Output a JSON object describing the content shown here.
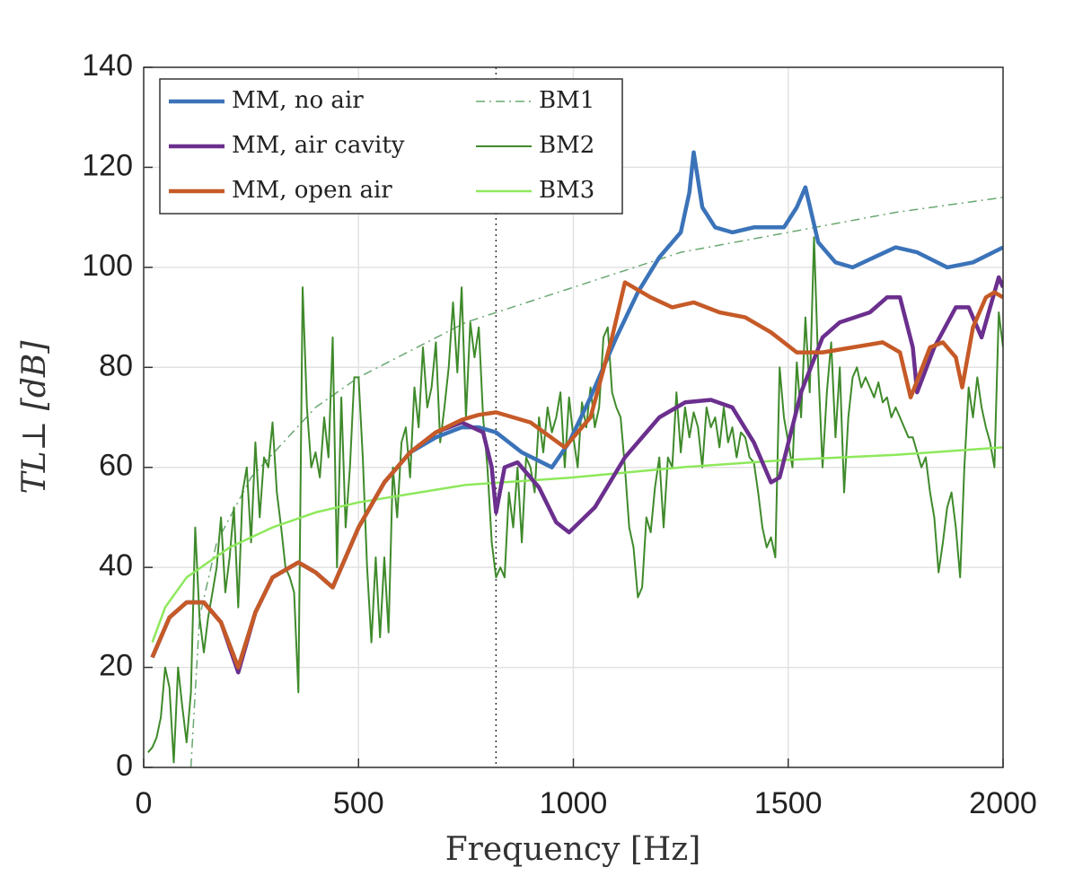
{
  "chart_data": {
    "type": "line",
    "xlabel": "Frequency [Hz]",
    "ylabel": "TL⊥ [dB]",
    "xlim": [
      0,
      2000
    ],
    "xticks": [
      0,
      500,
      1000,
      1500,
      2000
    ],
    "ylim": [
      0,
      140
    ],
    "yticks": [
      0,
      20,
      40,
      60,
      80,
      100,
      120,
      140
    ],
    "grid": true,
    "legend": "upper left",
    "vline": 820,
    "series": [
      {
        "name": "MM, no air",
        "color": "#3b73b9",
        "width": 4.5,
        "dash": "solid",
        "x": [
          20,
          60,
          100,
          140,
          180,
          220,
          260,
          300,
          360,
          400,
          440,
          500,
          560,
          620,
          680,
          740,
          780,
          820,
          880,
          950,
          990,
          1040,
          1100,
          1150,
          1200,
          1250,
          1270,
          1280,
          1300,
          1330,
          1370,
          1420,
          1490,
          1520,
          1540,
          1570,
          1610,
          1650,
          1700,
          1750,
          1800,
          1870,
          1930,
          2000
        ],
        "values": [
          22,
          30,
          33,
          33,
          29,
          20,
          31,
          38,
          41,
          39,
          36,
          48,
          57,
          63,
          66,
          68,
          68,
          67,
          63,
          60,
          65,
          74,
          86,
          95,
          102,
          107,
          115,
          123,
          112,
          108,
          107,
          108,
          108,
          112,
          116,
          105,
          101,
          100,
          102,
          104,
          103,
          100,
          101,
          104
        ]
      },
      {
        "name": "MM, air cavity",
        "color": "#6b2f8e",
        "width": 4.5,
        "dash": "solid",
        "x": [
          20,
          60,
          100,
          140,
          180,
          220,
          260,
          300,
          360,
          400,
          440,
          500,
          560,
          620,
          680,
          740,
          790,
          810,
          820,
          840,
          870,
          920,
          960,
          990,
          1050,
          1120,
          1200,
          1260,
          1320,
          1370,
          1420,
          1460,
          1480,
          1530,
          1580,
          1620,
          1690,
          1730,
          1760,
          1790,
          1800,
          1840,
          1890,
          1920,
          1950,
          1970,
          1990,
          2000
        ],
        "values": [
          22,
          30,
          33,
          33,
          29,
          19,
          31,
          38,
          41,
          39,
          36,
          48,
          57,
          63,
          67,
          69,
          67,
          60,
          51,
          60,
          61,
          56,
          49,
          47,
          52,
          62,
          70,
          73,
          73.5,
          72,
          65,
          57,
          58,
          75,
          86,
          89,
          91,
          94,
          94,
          84,
          75,
          84,
          92,
          92,
          86,
          92,
          98,
          96
        ]
      },
      {
        "name": "MM, open air",
        "color": "#c65a27",
        "width": 4.5,
        "dash": "solid",
        "x": [
          20,
          60,
          100,
          140,
          180,
          220,
          260,
          300,
          360,
          400,
          440,
          500,
          560,
          620,
          680,
          740,
          780,
          820,
          900,
          980,
          1040,
          1090,
          1120,
          1180,
          1230,
          1280,
          1340,
          1400,
          1460,
          1520,
          1580,
          1650,
          1720,
          1760,
          1785,
          1830,
          1860,
          1890,
          1905,
          1930,
          1960,
          1980,
          2000
        ],
        "values": [
          22,
          30,
          33,
          33,
          29,
          20,
          31,
          38,
          41,
          39,
          36,
          48,
          57,
          63,
          67,
          69.5,
          70.5,
          71,
          69,
          64,
          70,
          86,
          97,
          94,
          92,
          93,
          91,
          90,
          87,
          83,
          83,
          84,
          85,
          83,
          74,
          84,
          85,
          82,
          76,
          88,
          94,
          95,
          94
        ]
      },
      {
        "name": "BM1",
        "color": "#6aa872",
        "width": 1.5,
        "dash": "dashdot",
        "x": [
          110,
          130,
          170,
          250,
          400,
          500,
          750,
          1000,
          1250,
          1500,
          1750,
          2000
        ],
        "values": [
          0,
          30,
          45,
          58,
          72,
          78,
          89,
          96,
          103,
          107,
          111,
          114
        ]
      },
      {
        "name": "BM2",
        "color": "#3f8a2b",
        "width": 2,
        "dash": "solid",
        "x": [
          10,
          20,
          30,
          40,
          50,
          60,
          70,
          80,
          90,
          100,
          110,
          120,
          130,
          140,
          150,
          160,
          170,
          180,
          190,
          200,
          210,
          220,
          230,
          240,
          250,
          260,
          270,
          280,
          290,
          300,
          310,
          320,
          330,
          340,
          350,
          360,
          370,
          380,
          390,
          400,
          410,
          420,
          430,
          440,
          450,
          460,
          470,
          480,
          490,
          500,
          510,
          520,
          530,
          540,
          550,
          560,
          570,
          580,
          590,
          600,
          610,
          620,
          630,
          640,
          650,
          660,
          670,
          680,
          690,
          700,
          710,
          720,
          730,
          740,
          750,
          760,
          770,
          780,
          790,
          800,
          810,
          820,
          830,
          840,
          850,
          860,
          870,
          880,
          890,
          900,
          910,
          920,
          930,
          940,
          950,
          960,
          970,
          980,
          990,
          1000,
          1010,
          1020,
          1030,
          1040,
          1050,
          1060,
          1070,
          1080,
          1090,
          1100,
          1110,
          1120,
          1130,
          1140,
          1150,
          1160,
          1170,
          1180,
          1190,
          1200,
          1210,
          1220,
          1230,
          1240,
          1250,
          1260,
          1270,
          1280,
          1290,
          1300,
          1310,
          1320,
          1330,
          1340,
          1350,
          1360,
          1370,
          1380,
          1390,
          1400,
          1410,
          1420,
          1430,
          1440,
          1450,
          1460,
          1470,
          1480,
          1490,
          1500,
          1510,
          1520,
          1530,
          1540,
          1550,
          1560,
          1570,
          1580,
          1590,
          1600,
          1610,
          1620,
          1630,
          1640,
          1650,
          1660,
          1670,
          1680,
          1690,
          1700,
          1710,
          1720,
          1730,
          1740,
          1750,
          1760,
          1770,
          1780,
          1790,
          1800,
          1810,
          1820,
          1830,
          1840,
          1850,
          1860,
          1870,
          1880,
          1890,
          1900,
          1910,
          1920,
          1930,
          1940,
          1950,
          1960,
          1970,
          1980,
          1990,
          2000
        ],
        "values": [
          3,
          4,
          6,
          10,
          20,
          16,
          1,
          20,
          12,
          5,
          15,
          48,
          30,
          23,
          30,
          35,
          40,
          50,
          35,
          42,
          52,
          32,
          55,
          60,
          45,
          65,
          50,
          62,
          60,
          69,
          55,
          48,
          40,
          38,
          35,
          15,
          96,
          72,
          60,
          63,
          58,
          70,
          62,
          86,
          40,
          74,
          48,
          60,
          78,
          78,
          62,
          40,
          25,
          42,
          26,
          42,
          27,
          60,
          50,
          65,
          68,
          58,
          76,
          68,
          84,
          72,
          76,
          85,
          65,
          72,
          80,
          93,
          79,
          96,
          70,
          89,
          82,
          88,
          70,
          60,
          45,
          38,
          40,
          38,
          55,
          48,
          60,
          45,
          62,
          60,
          55,
          70,
          63,
          72,
          67,
          70,
          75,
          60,
          74,
          66,
          60,
          73,
          68,
          76,
          68,
          72,
          86,
          88,
          75,
          72,
          70,
          60,
          48,
          44,
          34,
          36,
          50,
          47,
          56,
          62,
          48,
          62,
          60,
          75,
          63,
          72,
          66,
          71,
          68,
          60,
          72,
          68,
          70,
          64,
          72,
          65,
          68,
          62,
          67,
          66,
          62,
          61,
          55,
          48,
          44,
          46,
          42,
          80,
          70,
          65,
          60,
          81,
          70,
          90,
          75,
          106,
          80,
          60,
          75,
          85,
          66,
          80,
          55,
          70,
          78,
          80,
          76,
          78,
          76,
          74,
          77,
          73,
          74,
          70,
          72,
          70,
          68,
          66,
          66,
          63,
          60,
          62,
          55,
          50,
          39,
          45,
          52,
          55,
          48,
          38,
          60,
          76,
          70,
          78,
          72,
          68,
          65,
          60,
          91,
          84
        ]
      },
      {
        "name": "BM3",
        "color": "#8ee85c",
        "width": 2.5,
        "dash": "solid",
        "x": [
          20,
          50,
          100,
          200,
          300,
          400,
          500,
          750,
          1000,
          1250,
          1500,
          1750,
          2000
        ],
        "values": [
          25,
          32,
          38,
          44,
          48,
          51,
          53,
          56.5,
          58,
          60,
          61.5,
          62.5,
          64
        ]
      }
    ]
  }
}
